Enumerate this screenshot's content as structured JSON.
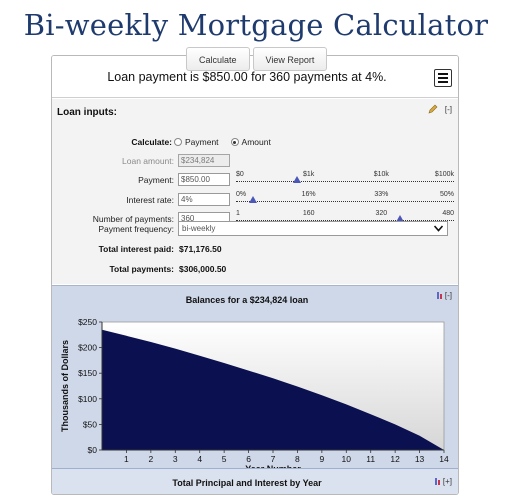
{
  "page": {
    "title": "Bi-weekly Mortgage Calculator"
  },
  "tabs": [
    {
      "label": "Calculate"
    },
    {
      "label": "View Report"
    }
  ],
  "summary": {
    "text": "Loan payment is $850.00 for 360 payments at 4%."
  },
  "inputs": {
    "heading": "Loan inputs:",
    "collapse_label": "[-]",
    "calculate": {
      "label": "Calculate:",
      "options": [
        "Payment",
        "Amount"
      ],
      "selected": "Amount"
    },
    "loan_amount": {
      "label": "Loan amount:",
      "value": "$234,824"
    },
    "payment": {
      "label": "Payment:",
      "value": "$850.00",
      "slider_ticks": [
        "$0",
        "$1k",
        "$10k",
        "$100k"
      ],
      "slider_fraction": 0.28
    },
    "interest_rate": {
      "label": "Interest rate:",
      "value": "4%",
      "slider_ticks": [
        "0%",
        "16%",
        "33%",
        "50%"
      ],
      "slider_fraction": 0.08
    },
    "num_payments": {
      "label": "Number of payments:",
      "value": "360",
      "slider_ticks": [
        "1",
        "160",
        "320",
        "480"
      ],
      "slider_fraction": 0.75
    },
    "frequency": {
      "label": "Payment frequency:",
      "value": "bi-weekly"
    },
    "total_interest": {
      "label": "Total interest paid:",
      "value": "$71,176.50"
    },
    "total_payments": {
      "label": "Total payments:",
      "value": "$306,000.50"
    }
  },
  "chart_panel": {
    "collapse_label": "[-]"
  },
  "footer": {
    "title": "Total Principal and Interest by Year",
    "expand_label": "[+]"
  },
  "colors": {
    "title": "#1f3b6e",
    "chart_fill": "#0a1050",
    "chart_panel_bg": "#cfd8e9",
    "slider_handle": "#4a57b8"
  },
  "chart_data": {
    "type": "area",
    "title": "Balances for a $234,824 loan",
    "xlabel": "Year Number",
    "ylabel": "Thousands of Dollars",
    "x": [
      0,
      1,
      2,
      3,
      4,
      5,
      6,
      7,
      8,
      9,
      10,
      11,
      12,
      13,
      14
    ],
    "y": [
      234.8,
      223,
      211,
      198,
      184,
      170,
      155,
      140,
      124,
      107,
      89,
      70,
      50,
      28,
      0
    ],
    "xticks": [
      1,
      2,
      3,
      4,
      5,
      6,
      7,
      8,
      9,
      10,
      11,
      12,
      13,
      14
    ],
    "yticks": [
      "$0",
      "$50",
      "$100",
      "$150",
      "$200",
      "$250"
    ],
    "ytick_values": [
      0,
      50,
      100,
      150,
      200,
      250
    ],
    "xlim": [
      0,
      14
    ],
    "ylim": [
      0,
      250
    ],
    "grid": false,
    "legend": "none"
  }
}
